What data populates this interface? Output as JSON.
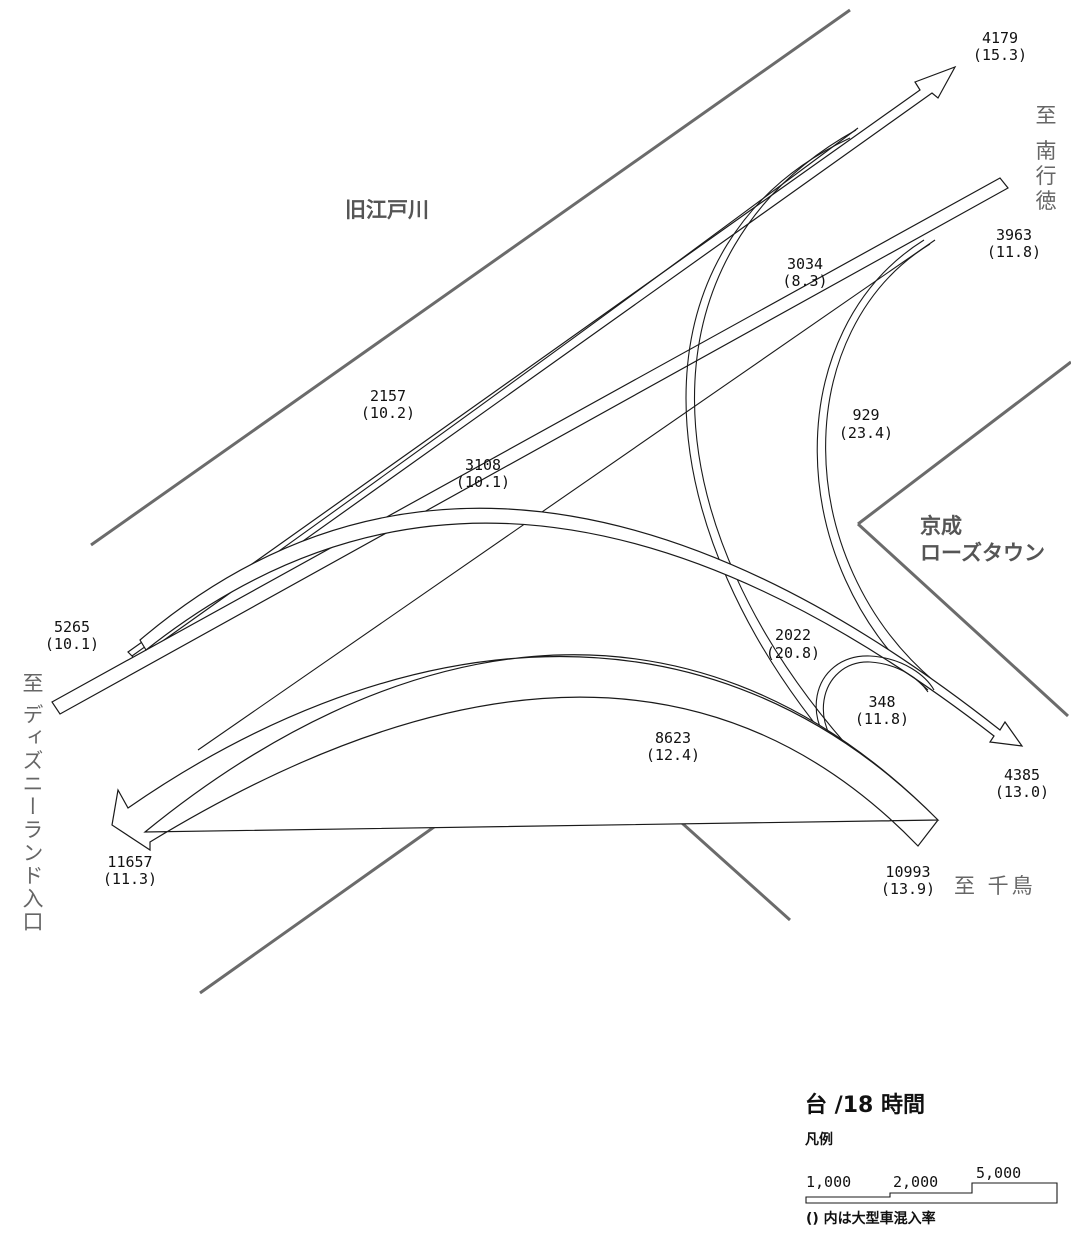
{
  "places": {
    "kyu_edogawa": "旧江戸川",
    "to_minami_gyotoku": "至 南行徳",
    "keisei_1": "京成",
    "keisei_2": "ローズタウン",
    "to_disneyland": "至 ディズニーランド入口",
    "to_chidori": "至 千鳥"
  },
  "flows": [
    {
      "id": "4179",
      "volume": "4179",
      "ratio": "(15.3)"
    },
    {
      "id": "3963",
      "volume": "3963",
      "ratio": "(11.8)"
    },
    {
      "id": "3034",
      "volume": "3034",
      "ratio": "(8.3)"
    },
    {
      "id": "2157",
      "volume": "2157",
      "ratio": "(10.2)"
    },
    {
      "id": "929",
      "volume": "929",
      "ratio": "(23.4)"
    },
    {
      "id": "3108",
      "volume": "3108",
      "ratio": "(10.1)"
    },
    {
      "id": "5265",
      "volume": "5265",
      "ratio": "(10.1)"
    },
    {
      "id": "2022",
      "volume": "2022",
      "ratio": "(20.8)"
    },
    {
      "id": "348",
      "volume": "348",
      "ratio": "(11.8)"
    },
    {
      "id": "8623",
      "volume": "8623",
      "ratio": "(12.4)"
    },
    {
      "id": "4385",
      "volume": "4385",
      "ratio": "(13.0)"
    },
    {
      "id": "11657",
      "volume": "11657",
      "ratio": "(11.3)"
    },
    {
      "id": "10993",
      "volume": "10993",
      "ratio": "(13.9)"
    }
  ],
  "unit": "台 /18 時間",
  "legend": {
    "title": "凡例",
    "v1": "1,000",
    "v2": "2,000",
    "v3": "5,000",
    "note": "() 内は大型車混入率"
  }
}
